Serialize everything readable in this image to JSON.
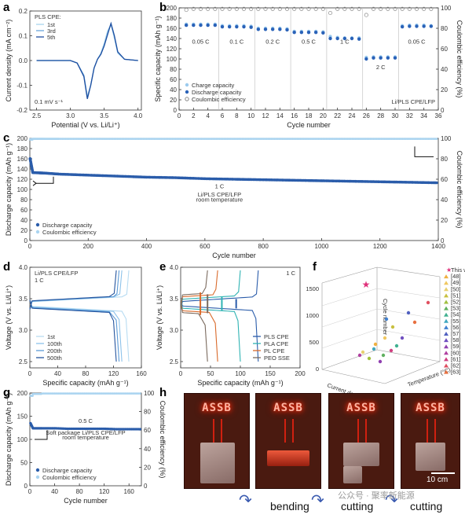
{
  "figure": {
    "panels": {
      "a": "a",
      "b": "b",
      "c": "c",
      "d": "d",
      "e": "e",
      "f": "f",
      "g": "g",
      "h": "h"
    }
  },
  "chart_data": [
    {
      "id": "a",
      "type": "line",
      "xlabel": "Potential (V vs. Li/Li⁺)",
      "ylabel": "Current density (mA cm⁻²)",
      "xlim": [
        2.4,
        4.05
      ],
      "ylim": [
        -0.2,
        0.2
      ],
      "xticks": [
        "2.5",
        "3.0",
        "3.5",
        "4.0"
      ],
      "yticks": [
        "-0.2",
        "-0.1",
        "0.0",
        "0.1",
        "0.2"
      ],
      "legend_title": "PLS CPE:",
      "annotation": "0.1 mV s⁻¹",
      "series": [
        {
          "name": "1st",
          "color": "#a8d4ee",
          "x": [
            2.5,
            3.0,
            3.1,
            3.2,
            3.25,
            3.3,
            3.35,
            3.4,
            3.45,
            3.5,
            3.55,
            3.6,
            3.65,
            3.7,
            3.8,
            4.0
          ],
          "y": [
            0,
            0,
            -0.01,
            -0.06,
            -0.145,
            -0.1,
            -0.03,
            0.005,
            0.03,
            0.07,
            0.12,
            0.145,
            0.09,
            0.03,
            0.005,
            0
          ]
        },
        {
          "name": "3rd",
          "color": "#6aa6dc",
          "x": [
            2.5,
            3.0,
            3.1,
            3.2,
            3.25,
            3.3,
            3.35,
            3.4,
            3.45,
            3.5,
            3.55,
            3.6,
            3.65,
            3.7,
            3.8,
            4.0
          ],
          "y": [
            0,
            0,
            -0.01,
            -0.06,
            -0.15,
            -0.1,
            -0.03,
            0.005,
            0.025,
            0.06,
            0.11,
            0.15,
            0.1,
            0.035,
            0.005,
            0
          ]
        },
        {
          "name": "5th",
          "color": "#1f4fa0",
          "x": [
            2.5,
            3.0,
            3.1,
            3.2,
            3.25,
            3.3,
            3.35,
            3.4,
            3.45,
            3.5,
            3.55,
            3.6,
            3.65,
            3.7,
            3.8,
            4.0
          ],
          "y": [
            0,
            0,
            -0.01,
            -0.065,
            -0.155,
            -0.1,
            -0.03,
            0.005,
            0.025,
            0.06,
            0.105,
            0.15,
            0.1,
            0.035,
            0.005,
            0
          ]
        }
      ]
    },
    {
      "id": "b",
      "type": "scatter",
      "xlabel": "Cycle number",
      "ylabel": "Specific capacity (mAh g⁻¹)",
      "ylabel_right": "Coulombic efficiency (%)",
      "xlim": [
        0,
        36
      ],
      "ylim": [
        0,
        200
      ],
      "y2lim": [
        0,
        100
      ],
      "xticks": [
        "0",
        "2",
        "4",
        "6",
        "8",
        "10",
        "12",
        "14",
        "16",
        "18",
        "20",
        "22",
        "24",
        "26",
        "28",
        "30",
        "32",
        "34",
        "36"
      ],
      "yticks": [
        "0",
        "20",
        "40",
        "60",
        "80",
        "100",
        "120",
        "140",
        "160",
        "180",
        "200"
      ],
      "y2ticks": [
        "0",
        "20",
        "40",
        "60",
        "80",
        "100"
      ],
      "rates": [
        "0.05 C",
        "0.1 C",
        "0.2 C",
        "0.5 C",
        "1 C",
        "2 C",
        "0.05 C"
      ],
      "legend": [
        "Charge capacity",
        "Discharge capacity",
        "Coulombic efficiency"
      ],
      "annotation": "Li/PLS CPE/LFP",
      "cycles": [
        1,
        2,
        3,
        4,
        5,
        6,
        7,
        8,
        9,
        10,
        11,
        12,
        13,
        14,
        15,
        16,
        17,
        18,
        19,
        20,
        21,
        22,
        23,
        24,
        25,
        26,
        27,
        28,
        29,
        30,
        31,
        32,
        33,
        34,
        35
      ],
      "charge": [
        168,
        168,
        168,
        168,
        168,
        165,
        165,
        165,
        165,
        164,
        160,
        160,
        160,
        160,
        159,
        154,
        154,
        154,
        154,
        153,
        144,
        142,
        141,
        141,
        141,
        103,
        104,
        104,
        104,
        104,
        165,
        166,
        166,
        166,
        165
      ],
      "discharge": [
        166,
        166,
        166,
        166,
        166,
        163,
        163,
        163,
        163,
        162,
        158,
        158,
        158,
        158,
        157,
        152,
        152,
        152,
        152,
        151,
        140,
        140,
        140,
        140,
        139,
        100,
        102,
        102,
        102,
        102,
        163,
        164,
        164,
        164,
        164
      ],
      "ce": [
        98,
        99,
        99,
        99,
        99,
        99,
        99,
        99,
        99,
        99,
        99,
        99,
        99,
        99,
        99,
        99,
        99,
        99,
        99,
        99,
        95,
        99,
        99,
        99,
        99,
        93,
        99,
        99,
        99,
        99,
        99,
        99,
        99,
        99,
        99
      ]
    },
    {
      "id": "c",
      "type": "scatter",
      "xlabel": "Cycle number",
      "ylabel": "Discharge capacity (mAh g⁻¹)",
      "ylabel_right": "Coulombic efficiency (%)",
      "xlim": [
        0,
        1400
      ],
      "ylim": [
        0,
        200
      ],
      "y2lim": [
        0,
        100
      ],
      "xticks": [
        "0",
        "200",
        "400",
        "600",
        "800",
        "1000",
        "1200",
        "1400"
      ],
      "yticks": [
        "0",
        "20",
        "40",
        "60",
        "80",
        "100",
        "120",
        "140",
        "160",
        "180",
        "200"
      ],
      "y2ticks": [
        "0",
        "20",
        "40",
        "60",
        "80",
        "100"
      ],
      "annotations": [
        "1 C",
        "Li/PLS CPE/LFP",
        "room temperature"
      ],
      "legend": [
        "Discharge capacity",
        "Coulombic efficiency"
      ],
      "x": [
        1,
        10,
        50,
        100,
        200,
        300,
        400,
        500,
        600,
        700,
        800,
        900,
        1000,
        1100,
        1200,
        1300,
        1400
      ],
      "discharge": [
        160,
        133,
        132,
        130,
        128,
        126,
        124,
        123,
        121,
        120,
        119,
        118,
        117,
        116,
        115,
        114,
        113
      ],
      "ce": [
        99,
        99.5,
        99.5,
        99.5,
        99.5,
        99.5,
        99.5,
        99.5,
        99.5,
        99.5,
        99.5,
        99.5,
        99.5,
        99.5,
        99.5,
        99.5,
        99.5
      ]
    },
    {
      "id": "d",
      "type": "line",
      "xlabel": "Specific capacity (mAh g⁻¹)",
      "ylabel": "Voltage (V vs. Li/Li⁺)",
      "xlim": [
        0,
        160
      ],
      "ylim": [
        2.4,
        4.0
      ],
      "xticks": [
        "0",
        "40",
        "80",
        "120",
        "160"
      ],
      "yticks": [
        "2.5",
        "3.0",
        "3.5",
        "4.0"
      ],
      "title": "Li/PLS CPE/LFP",
      "subtitle": "1 C",
      "series": [
        {
          "name": "1st",
          "color": "#b8dcf2",
          "cap": 142
        },
        {
          "name": "100th",
          "color": "#8cc2ea",
          "cap": 132
        },
        {
          "name": "200th",
          "color": "#5c9ad6",
          "cap": 128
        },
        {
          "name": "500th",
          "color": "#24549e",
          "cap": 124
        }
      ]
    },
    {
      "id": "e",
      "type": "line",
      "xlabel": "Specific capacity (mAh g⁻¹)",
      "ylabel": "Voltage (V vs. Li/Li⁺)",
      "xlim": [
        0,
        200
      ],
      "ylim": [
        2.4,
        4.0
      ],
      "xticks": [
        "0",
        "50",
        "100",
        "150",
        "200"
      ],
      "yticks": [
        "2.5",
        "3.0",
        "3.5",
        "4.0"
      ],
      "subtitle": "1 C",
      "series": [
        {
          "name": "PLS CPE",
          "color": "#2a5caa",
          "cap": 130,
          "gap": 0.07
        },
        {
          "name": "PLA CPE",
          "color": "#2fb3b3",
          "cap": 100,
          "gap": 0.14
        },
        {
          "name": "PL CPE",
          "color": "#d96a2b",
          "cap": 62,
          "gap": 0.22
        },
        {
          "name": "PEO SSE",
          "color": "#7a6a5e",
          "cap": 45,
          "gap": 0.28
        }
      ]
    },
    {
      "id": "f",
      "type": "scatter",
      "xlabel": "Current density (C)",
      "ylabel": "Cycle number",
      "zlabel": "Temperature (°C)",
      "zticks": [
        "0",
        "500",
        "1000",
        "1500"
      ],
      "legend": [
        "This work",
        "[48]",
        "[49]",
        "[50]",
        "[51]",
        "[52]",
        "[53]",
        "[54]",
        "[55]",
        "[56]",
        "[57]",
        "[58]",
        "[59]",
        "[60]",
        "[61]",
        "[62]",
        "[63]"
      ],
      "colors": [
        "#e0307a",
        "#f0b040",
        "#f0c860",
        "#e8d070",
        "#c8c040",
        "#a0c040",
        "#60b060",
        "#40b090",
        "#40a8c0",
        "#4080d0",
        "#5060c0",
        "#7050c0",
        "#9040b0",
        "#b040a0",
        "#d04080",
        "#e05060",
        "#e87040"
      ]
    },
    {
      "id": "g",
      "type": "scatter",
      "xlabel": "Cycle number",
      "ylabel": "Discharge capacity (mAh g⁻¹)",
      "ylabel_right": "Coulombic efficiency (%)",
      "xlim": [
        0,
        180
      ],
      "ylim": [
        0,
        200
      ],
      "y2lim": [
        0,
        100
      ],
      "xticks": [
        "0",
        "40",
        "80",
        "120",
        "160"
      ],
      "yticks": [
        "0",
        "50",
        "100",
        "150",
        "200"
      ],
      "y2ticks": [
        "0",
        "20",
        "40",
        "60",
        "80",
        "100"
      ],
      "annotations": [
        "0.5 C",
        "Soft package Li/PLS CPE/LFP",
        "room temperature"
      ],
      "legend": [
        "Discharge capacity",
        "Coulombic efficiency"
      ],
      "x": [
        1,
        5,
        20,
        40,
        60,
        80,
        100,
        120,
        140,
        160,
        180
      ],
      "discharge": [
        135,
        124,
        124,
        124,
        123,
        123,
        123,
        123,
        122,
        122,
        122
      ],
      "ce": [
        97,
        99,
        99.5,
        99.5,
        99.5,
        99.5,
        99.5,
        99.5,
        99.5,
        99.5,
        99.5
      ]
    }
  ],
  "panel_h": {
    "sign_text": "ASSB",
    "captions": [
      "bending",
      "cutting",
      "cutting"
    ],
    "scale_bar": "10 cm",
    "watermark": "公众号 · 聚率新能源"
  }
}
